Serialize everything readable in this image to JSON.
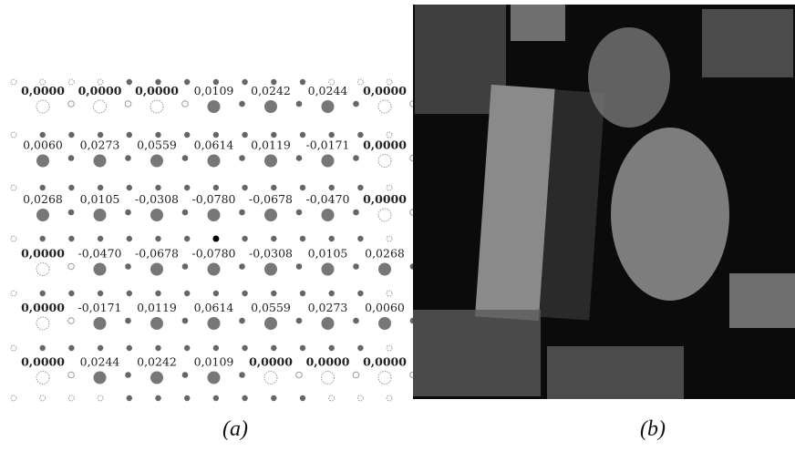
{
  "filter_grid": {
    "rows": [
      [
        {
          "text": "0,0000",
          "bold": true
        },
        {
          "text": "0,0000",
          "bold": true
        },
        {
          "text": "0,0000",
          "bold": true
        },
        {
          "text": "0,0109",
          "bold": false
        },
        {
          "text": "0,0242",
          "bold": false
        },
        {
          "text": "0,0244",
          "bold": false
        },
        {
          "text": "0,0000",
          "bold": true
        }
      ],
      [
        {
          "text": "0,0060",
          "bold": false
        },
        {
          "text": "0,0273",
          "bold": false
        },
        {
          "text": "0,0559",
          "bold": false
        },
        {
          "text": "0,0614",
          "bold": false
        },
        {
          "text": "0,0119",
          "bold": false
        },
        {
          "text": "-0,0171",
          "bold": false
        },
        {
          "text": "0,0000",
          "bold": true
        }
      ],
      [
        {
          "text": "0,0268",
          "bold": false
        },
        {
          "text": "0,0105",
          "bold": false
        },
        {
          "text": "-0,0308",
          "bold": false
        },
        {
          "text": "-0,0780",
          "bold": false
        },
        {
          "text": "-0,0678",
          "bold": false
        },
        {
          "text": "-0,0470",
          "bold": false
        },
        {
          "text": "0,0000",
          "bold": true
        }
      ],
      [
        {
          "text": "0,0000",
          "bold": true
        },
        {
          "text": "-0,0470",
          "bold": false
        },
        {
          "text": "-0,0678",
          "bold": false
        },
        {
          "text": "-0,0780",
          "bold": false
        },
        {
          "text": "-0,0308",
          "bold": false
        },
        {
          "text": "0,0105",
          "bold": false
        },
        {
          "text": "0,0268",
          "bold": false
        }
      ],
      [
        {
          "text": "0,0000",
          "bold": true
        },
        {
          "text": "-0,0171",
          "bold": false
        },
        {
          "text": "0,0119",
          "bold": false
        },
        {
          "text": "0,0614",
          "bold": false
        },
        {
          "text": "0,0559",
          "bold": false
        },
        {
          "text": "0,0273",
          "bold": false
        },
        {
          "text": "0,0060",
          "bold": false
        }
      ],
      [
        {
          "text": "0,0000",
          "bold": true
        },
        {
          "text": "0,0244",
          "bold": false
        },
        {
          "text": "0,0242",
          "bold": false
        },
        {
          "text": "0,0109",
          "bold": false
        },
        {
          "text": "0,0000",
          "bold": true
        },
        {
          "text": "0,0000",
          "bold": true
        },
        {
          "text": "0,0000",
          "bold": true
        }
      ]
    ]
  },
  "captions": {
    "a": "(a)",
    "b": "(b)"
  }
}
